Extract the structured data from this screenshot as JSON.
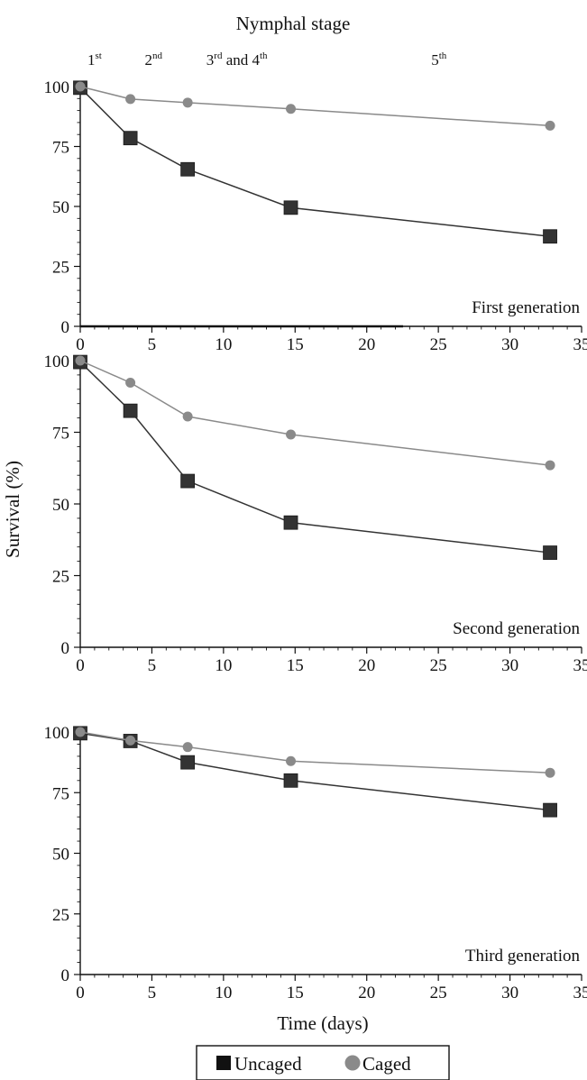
{
  "stage_header": {
    "title": "Nymphal stage",
    "stages": [
      {
        "base": "1",
        "sup": "st",
        "x": 0.5
      },
      {
        "base": "2",
        "sup": "nd",
        "x": 4.5
      },
      {
        "base": "3",
        "sup": "rd",
        "tail_base": " and 4",
        "tail_sup": "th",
        "x": 8.8
      },
      {
        "base": "5",
        "sup": "th",
        "x": 24.5
      }
    ]
  },
  "y_axis_title": "Survival (%)",
  "x_axis_title": "Time (days)",
  "legend": {
    "placement": "bottom-center",
    "items": [
      {
        "label": "Uncaged",
        "series": "uncaged"
      },
      {
        "label": "Caged",
        "series": "caged"
      }
    ]
  },
  "colors": {
    "uncaged_marker": "#333333",
    "uncaged_line": "#333333",
    "caged_marker": "#8a8a8a",
    "caged_line": "#8a8a8a",
    "axis": "#111111"
  },
  "chart_data": [
    {
      "type": "line",
      "panel_label": "First generation",
      "xlim": [
        0,
        35
      ],
      "ylim": [
        0,
        100
      ],
      "xticks": [
        0,
        5,
        10,
        15,
        20,
        25,
        30,
        35
      ],
      "yticks": [
        0,
        25,
        50,
        75,
        100
      ],
      "series": [
        {
          "name": "Uncaged",
          "key": "uncaged",
          "x": [
            0,
            3.5,
            7.5,
            14.7,
            32.8
          ],
          "y": [
            99.5,
            78.5,
            65.5,
            49.5,
            37.5
          ]
        },
        {
          "name": "Caged",
          "key": "caged",
          "x": [
            0,
            3.5,
            7.5,
            14.7,
            32.8
          ],
          "y": [
            100,
            94.8,
            93.3,
            90.7,
            83.7
          ]
        }
      ]
    },
    {
      "type": "line",
      "panel_label": "Second generation",
      "xlim": [
        0,
        35
      ],
      "ylim": [
        0,
        100
      ],
      "xticks": [
        0,
        5,
        10,
        15,
        20,
        25,
        30,
        35
      ],
      "yticks": [
        0,
        25,
        50,
        75,
        100
      ],
      "series": [
        {
          "name": "Uncaged",
          "key": "uncaged",
          "x": [
            0,
            3.5,
            7.5,
            14.7,
            32.8
          ],
          "y": [
            99.5,
            82.5,
            58,
            43.5,
            33
          ]
        },
        {
          "name": "Caged",
          "key": "caged",
          "x": [
            0,
            3.5,
            7.5,
            14.7,
            32.8
          ],
          "y": [
            100,
            92.3,
            80.5,
            74.2,
            63.5
          ]
        }
      ]
    },
    {
      "type": "line",
      "panel_label": "Third generation",
      "xlim": [
        0,
        35
      ],
      "ylim": [
        0,
        100
      ],
      "xticks": [
        0,
        5,
        10,
        15,
        20,
        25,
        30,
        35
      ],
      "yticks": [
        0,
        25,
        50,
        75,
        100
      ],
      "series": [
        {
          "name": "Uncaged",
          "key": "uncaged",
          "x": [
            0,
            3.5,
            7.5,
            14.7,
            32.8
          ],
          "y": [
            99.5,
            96.3,
            87.5,
            80,
            67.8
          ]
        },
        {
          "name": "Caged",
          "key": "caged",
          "x": [
            0,
            3.5,
            7.5,
            14.7,
            32.8
          ],
          "y": [
            100,
            96.5,
            93.8,
            88,
            83.2
          ]
        }
      ]
    }
  ]
}
